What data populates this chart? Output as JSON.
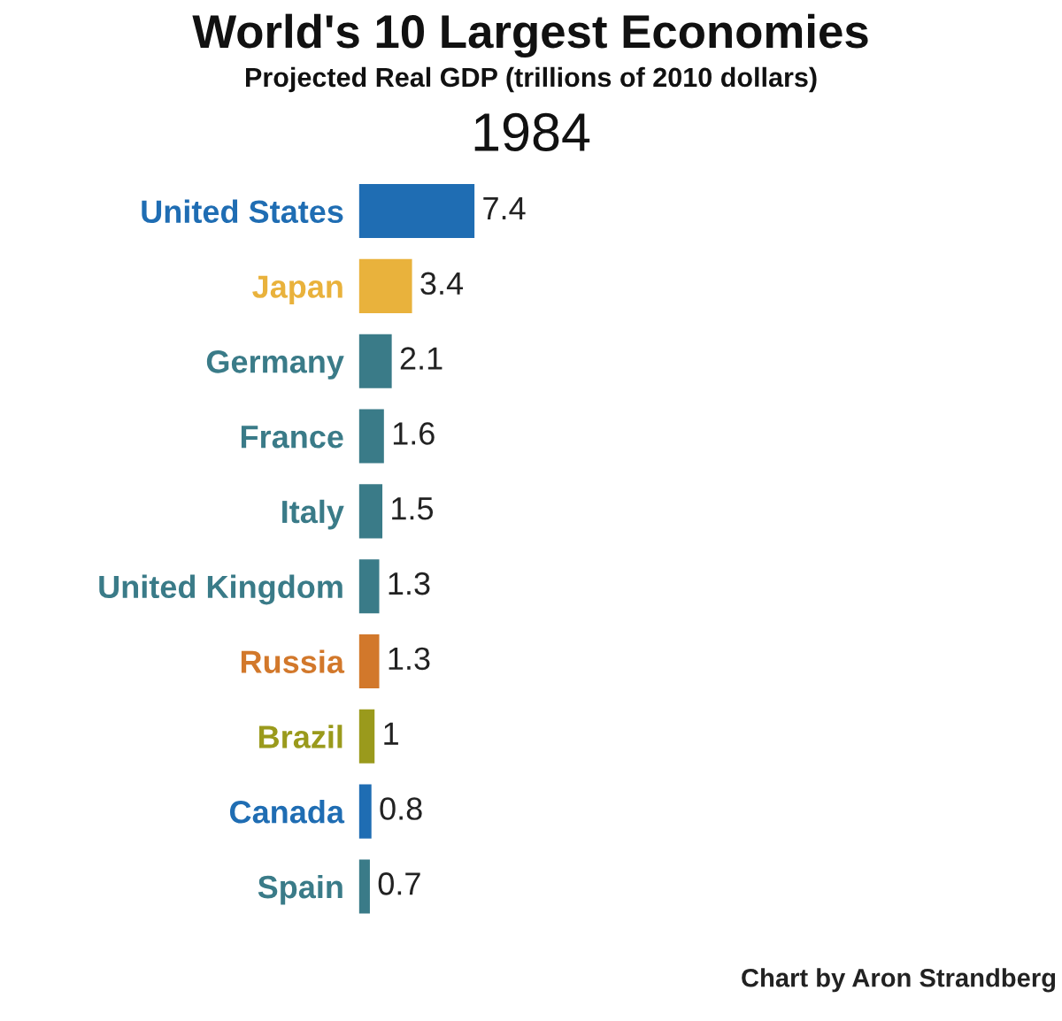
{
  "chart_data": {
    "type": "bar",
    "orientation": "horizontal",
    "title": "World's 10 Largest Economies",
    "subtitle": "Projected Real GDP (trillions of 2010 dollars)",
    "categories": [
      "United States",
      "Japan",
      "Germany",
      "France",
      "Italy",
      "United Kingdom",
      "Russia",
      "Brazil",
      "Canada",
      "Spain"
    ],
    "values": [
      7.4,
      3.4,
      2.1,
      1.6,
      1.5,
      1.3,
      1.3,
      1,
      0.8,
      0.7
    ],
    "colors": [
      "#1f6db3",
      "#e9b23c",
      "#3a7b88",
      "#3a7b88",
      "#3a7b88",
      "#3a7b88",
      "#d2782b",
      "#9a9a1c",
      "#1f6db3",
      "#3a7b88"
    ],
    "data_labels": true,
    "annotations": [
      "1984",
      "Chart by Aron Strandberg"
    ]
  }
}
